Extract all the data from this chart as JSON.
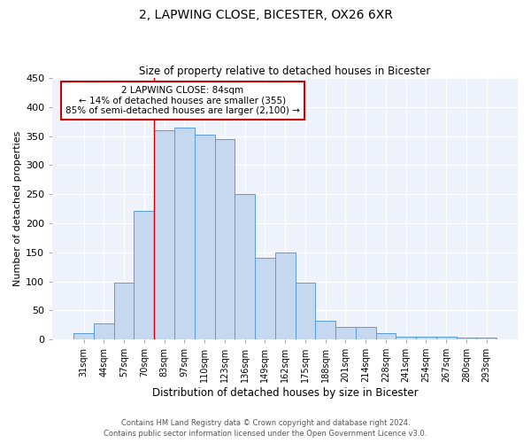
{
  "title": "2, LAPWING CLOSE, BICESTER, OX26 6XR",
  "subtitle": "Size of property relative to detached houses in Bicester",
  "xlabel": "Distribution of detached houses by size in Bicester",
  "ylabel": "Number of detached properties",
  "bar_labels": [
    "31sqm",
    "44sqm",
    "57sqm",
    "70sqm",
    "83sqm",
    "97sqm",
    "110sqm",
    "123sqm",
    "136sqm",
    "149sqm",
    "162sqm",
    "175sqm",
    "188sqm",
    "201sqm",
    "214sqm",
    "228sqm",
    "241sqm",
    "254sqm",
    "267sqm",
    "280sqm",
    "293sqm"
  ],
  "bar_values": [
    10,
    27,
    98,
    222,
    360,
    365,
    352,
    345,
    250,
    140,
    150,
    97,
    32,
    22,
    22,
    10,
    5,
    4,
    4,
    3,
    3
  ],
  "bar_color": "#c5d8f0",
  "bar_edge_color": "#5b9bd5",
  "ylim": [
    0,
    450
  ],
  "yticks": [
    0,
    50,
    100,
    150,
    200,
    250,
    300,
    350,
    400,
    450
  ],
  "annotation_title": "2 LAPWING CLOSE: 84sqm",
  "annotation_line1": "← 14% of detached houses are smaller (355)",
  "annotation_line2": "85% of semi-detached houses are larger (2,100) →",
  "annotation_box_color": "#ffffff",
  "annotation_box_edge": "#cc0000",
  "vline_x_index": 4,
  "background_color": "#eef2fa",
  "footer1": "Contains HM Land Registry data © Crown copyright and database right 2024.",
  "footer2": "Contains public sector information licensed under the Open Government Licence v3.0."
}
